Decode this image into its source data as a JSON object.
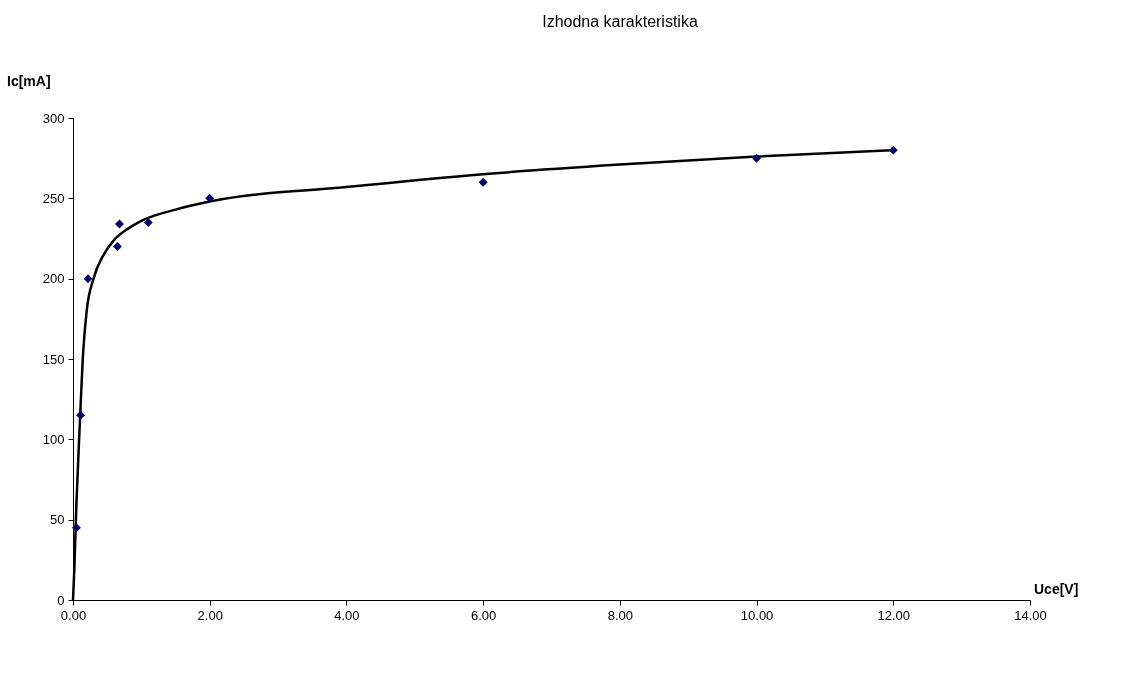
{
  "chart_data": {
    "type": "scatter",
    "title": "Izhodna karakteristika",
    "xlabel": "Uce[V]",
    "ylabel": "Ic[mA]",
    "xlim": [
      0,
      14
    ],
    "xticks": [
      {
        "value": 0,
        "label": "0.00"
      },
      {
        "value": 2,
        "label": "2.00"
      },
      {
        "value": 4,
        "label": "4.00"
      },
      {
        "value": 6,
        "label": "6.00"
      },
      {
        "value": 8,
        "label": "8.00"
      },
      {
        "value": 10,
        "label": "10.00"
      },
      {
        "value": 12,
        "label": "12.00"
      },
      {
        "value": 14,
        "label": "14.00"
      }
    ],
    "ylim": [
      0,
      300
    ],
    "yticks": [
      0,
      50,
      100,
      150,
      200,
      250,
      300
    ],
    "grid": false,
    "series": [
      {
        "type": "scatter",
        "marker": "diamond",
        "color": "#000066",
        "x": [
          0.05,
          0.11,
          0.22,
          0.65,
          0.68,
          1.1,
          2,
          6,
          10,
          12
        ],
        "values": [
          45,
          115,
          200,
          220,
          234,
          235,
          250,
          260,
          275,
          280
        ]
      },
      {
        "type": "line",
        "marker": "none",
        "line_style": "solid",
        "color": "#000000",
        "x": [
          0,
          0.02,
          0.05,
          0.1,
          0.15,
          0.2,
          0.3,
          0.45,
          0.6,
          0.8,
          1.0,
          1.5,
          2,
          4,
          6,
          8,
          10,
          12
        ],
        "values": [
          0,
          20,
          60,
          110,
          155,
          180,
          200,
          215,
          224,
          231,
          236,
          243,
          248,
          257,
          265,
          271,
          276,
          280
        ]
      }
    ]
  }
}
